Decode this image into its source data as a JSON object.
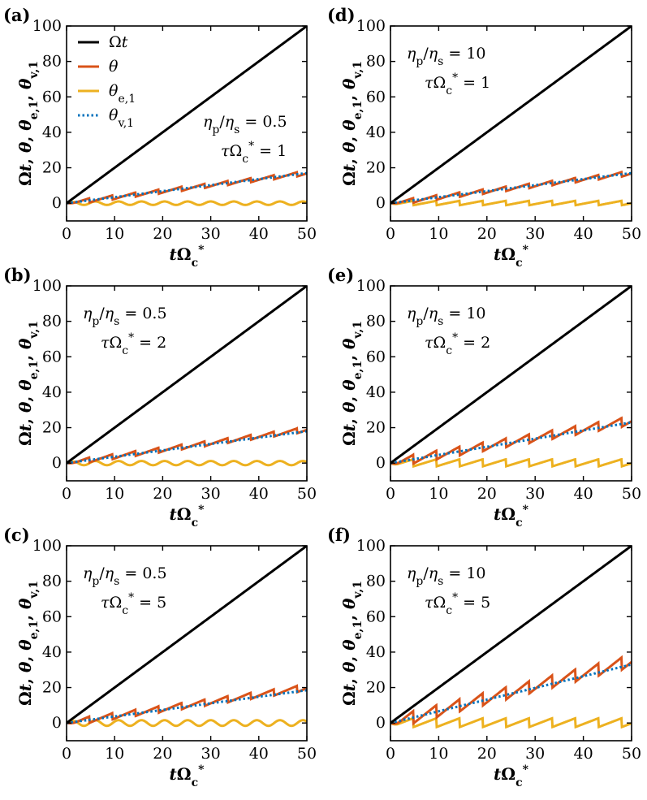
{
  "colors": {
    "omega_t": "#000000",
    "theta": "#d95319",
    "theta_e1": "#edb120",
    "theta_v1": "#0072bd"
  },
  "chart_data": [
    {
      "panel_label": "(a)",
      "type": "line",
      "annotation": [
        "ηp/ηs = 0.5",
        "τΩc* = 1"
      ],
      "xlabel": "tΩc*",
      "ylabel": "Ωt, θ, θe,1, θv,1",
      "xlim": [
        0,
        50
      ],
      "ylim": [
        -10,
        100
      ],
      "xticks": [
        "0",
        "10",
        "20",
        "30",
        "40",
        "50"
      ],
      "yticks": [
        "0",
        "20",
        "40",
        "60",
        "80",
        "100"
      ],
      "legend": [
        "Ωt",
        "θ",
        "θe,1",
        "θv,1"
      ],
      "series": [
        {
          "name": "Ωt",
          "kind": "linear",
          "slope": 2.0
        },
        {
          "name": "θ",
          "kind": "sawtooth",
          "trend_end": 17,
          "period": 4.8,
          "amplitude": 1.2
        },
        {
          "name": "θe,1",
          "kind": "oscillation",
          "period": 4.8,
          "amplitude": 1.0
        },
        {
          "name": "θv,1",
          "kind": "linear",
          "end": 17
        }
      ]
    },
    {
      "panel_label": "(b)",
      "type": "line",
      "annotation": [
        "ηp/ηs = 0.5",
        "τΩc* = 2"
      ],
      "xlabel": "tΩc*",
      "ylabel": "Ωt, θ, θe,1, θv,1",
      "xlim": [
        0,
        50
      ],
      "ylim": [
        -10,
        100
      ],
      "xticks": [
        "0",
        "10",
        "20",
        "30",
        "40",
        "50"
      ],
      "yticks": [
        "0",
        "20",
        "40",
        "60",
        "80",
        "100"
      ],
      "series": [
        {
          "name": "Ωt",
          "kind": "linear",
          "slope": 2.0
        },
        {
          "name": "θ",
          "kind": "sawtooth",
          "trend_end": 19,
          "period": 4.8,
          "amplitude": 1.4
        },
        {
          "name": "θe,1",
          "kind": "oscillation",
          "period": 4.8,
          "amplitude": 1.2
        },
        {
          "name": "θv,1",
          "kind": "linear",
          "end": 18
        }
      ]
    },
    {
      "panel_label": "(c)",
      "type": "line",
      "annotation": [
        "ηp/ηs = 0.5",
        "τΩc* = 5"
      ],
      "xlabel": "tΩc*",
      "ylabel": "Ωt, θ, θe,1, θv,1",
      "xlim": [
        0,
        50
      ],
      "ylim": [
        -10,
        100
      ],
      "xticks": [
        "0",
        "10",
        "20",
        "30",
        "40",
        "50"
      ],
      "yticks": [
        "0",
        "20",
        "40",
        "60",
        "80",
        "100"
      ],
      "series": [
        {
          "name": "Ωt",
          "kind": "linear",
          "slope": 2.0
        },
        {
          "name": "θ",
          "kind": "sawtooth",
          "trend_end": 20,
          "period": 4.8,
          "amplitude": 1.8
        },
        {
          "name": "θe,1",
          "kind": "oscillation",
          "period": 4.8,
          "amplitude": 1.6
        },
        {
          "name": "θv,1",
          "kind": "linear",
          "end": 18.5
        }
      ]
    },
    {
      "panel_label": "(d)",
      "type": "line",
      "annotation": [
        "ηp/ηs = 10",
        "τΩc* = 1"
      ],
      "xlabel": "tΩc*",
      "ylabel": "Ωt, θ, θe,1, θv,1",
      "xlim": [
        0,
        50
      ],
      "ylim": [
        -10,
        100
      ],
      "xticks": [
        "0",
        "10",
        "20",
        "30",
        "40",
        "50"
      ],
      "yticks": [
        "0",
        "20",
        "40",
        "60",
        "80",
        "100"
      ],
      "series": [
        {
          "name": "Ωt",
          "kind": "linear",
          "slope": 2.0
        },
        {
          "name": "θ",
          "kind": "sawtooth",
          "trend_end": 17,
          "period": 4.8,
          "amplitude": 1.3
        },
        {
          "name": "θe,1",
          "kind": "sawtooth_drop",
          "period": 4.8,
          "amplitude": 2.5
        },
        {
          "name": "θv,1",
          "kind": "linear",
          "end": 17
        }
      ]
    },
    {
      "panel_label": "(e)",
      "type": "line",
      "annotation": [
        "ηp/ηs = 10",
        "τΩc* = 2"
      ],
      "xlabel": "tΩc*",
      "ylabel": "Ωt, θ, θe,1, θv,1",
      "xlim": [
        0,
        50
      ],
      "ylim": [
        -10,
        100
      ],
      "xticks": [
        "0",
        "10",
        "20",
        "30",
        "40",
        "50"
      ],
      "yticks": [
        "0",
        "20",
        "40",
        "60",
        "80",
        "100"
      ],
      "series": [
        {
          "name": "Ωt",
          "kind": "linear",
          "slope": 2.0
        },
        {
          "name": "θ",
          "kind": "sawtooth",
          "trend_end": 24,
          "period": 4.8,
          "amplitude": 2.5
        },
        {
          "name": "θe,1",
          "kind": "sawtooth_drop",
          "period": 4.8,
          "amplitude": 4.0
        },
        {
          "name": "θv,1",
          "kind": "linear",
          "end": 23
        }
      ]
    },
    {
      "panel_label": "(f)",
      "type": "line",
      "annotation": [
        "ηp/ηs = 10",
        "τΩc* = 5"
      ],
      "xlabel": "tΩc*",
      "ylabel": "Ωt, θ, θe,1, θv,1",
      "xlim": [
        0,
        50
      ],
      "ylim": [
        -10,
        100
      ],
      "xticks": [
        "0",
        "10",
        "20",
        "30",
        "40",
        "50"
      ],
      "yticks": [
        "0",
        "20",
        "40",
        "60",
        "80",
        "100"
      ],
      "series": [
        {
          "name": "Ωt",
          "kind": "linear",
          "slope": 2.0
        },
        {
          "name": "θ",
          "kind": "sawtooth",
          "trend_end": 35,
          "period": 4.8,
          "amplitude": 3.5
        },
        {
          "name": "θe,1",
          "kind": "sawtooth_drop",
          "period": 4.8,
          "amplitude": 5.0
        },
        {
          "name": "θv,1",
          "kind": "linear",
          "end": 33
        }
      ]
    }
  ]
}
